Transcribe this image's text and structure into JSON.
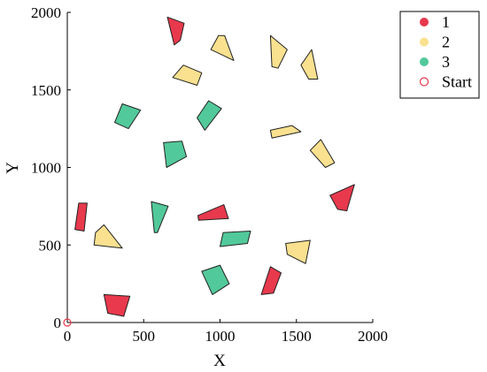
{
  "chart_data": {
    "type": "scatter",
    "xlabel": "X",
    "ylabel": "Y",
    "xlim": [
      0,
      2000
    ],
    "ylim": [
      0,
      2000
    ],
    "xticks": [
      "0",
      "500",
      "1000",
      "1500",
      "2000"
    ],
    "yticks": [
      "0",
      "500",
      "1000",
      "1500",
      "2000"
    ],
    "grid": false,
    "legend_position": "top-right",
    "legend": [
      {
        "label": "1",
        "color": "#e8394d",
        "marker": "filled-circle"
      },
      {
        "label": "2",
        "color": "#fae18f",
        "marker": "filled-circle"
      },
      {
        "label": "3",
        "color": "#52c99a",
        "marker": "filled-circle"
      },
      {
        "label": "Start",
        "color": "#e8394d",
        "marker": "open-circle"
      }
    ],
    "start": {
      "x": 0,
      "y": 0
    },
    "series": [
      {
        "name": "1",
        "color": "#e8394d",
        "polygons": [
          [
            [
              655,
              1970
            ],
            [
              765,
              1930
            ],
            [
              740,
              1820
            ],
            [
              700,
              1790
            ]
          ],
          [
            [
              75,
              770
            ],
            [
              130,
              770
            ],
            [
              110,
              590
            ],
            [
              50,
              600
            ]
          ],
          [
            [
              855,
              690
            ],
            [
              860,
              660
            ],
            [
              1055,
              670
            ],
            [
              1025,
              760
            ]
          ],
          [
            [
              1720,
              820
            ],
            [
              1880,
              890
            ],
            [
              1830,
              720
            ],
            [
              1770,
              730
            ]
          ],
          [
            [
              1330,
              360
            ],
            [
              1400,
              320
            ],
            [
              1350,
              190
            ],
            [
              1270,
              180
            ]
          ],
          [
            [
              240,
              180
            ],
            [
              410,
              170
            ],
            [
              370,
              40
            ],
            [
              265,
              60
            ]
          ]
        ]
      },
      {
        "name": "2",
        "color": "#fae18f",
        "polygons": [
          [
            [
              940,
              1760
            ],
            [
              990,
              1850
            ],
            [
              1030,
              1850
            ],
            [
              1090,
              1690
            ]
          ],
          [
            [
              1330,
              1850
            ],
            [
              1440,
              1760
            ],
            [
              1380,
              1640
            ],
            [
              1340,
              1650
            ]
          ],
          [
            [
              1530,
              1660
            ],
            [
              1600,
              1760
            ],
            [
              1640,
              1570
            ],
            [
              1580,
              1570
            ]
          ],
          [
            [
              690,
              1580
            ],
            [
              760,
              1660
            ],
            [
              880,
              1610
            ],
            [
              850,
              1530
            ]
          ],
          [
            [
              1330,
              1240
            ],
            [
              1470,
              1270
            ],
            [
              1530,
              1230
            ],
            [
              1340,
              1190
            ]
          ],
          [
            [
              1660,
              1180
            ],
            [
              1750,
              1030
            ],
            [
              1690,
              1000
            ],
            [
              1590,
              1110
            ]
          ],
          [
            [
              185,
              580
            ],
            [
              240,
              630
            ],
            [
              360,
              480
            ],
            [
              175,
              500
            ]
          ],
          [
            [
              1430,
              510
            ],
            [
              1590,
              530
            ],
            [
              1560,
              380
            ],
            [
              1440,
              440
            ]
          ]
        ]
      },
      {
        "name": "3",
        "color": "#52c99a",
        "polygons": [
          [
            [
              360,
              1410
            ],
            [
              480,
              1370
            ],
            [
              400,
              1250
            ],
            [
              310,
              1290
            ]
          ],
          [
            [
              925,
              1430
            ],
            [
              1010,
              1380
            ],
            [
              900,
              1240
            ],
            [
              850,
              1320
            ]
          ],
          [
            [
              630,
              1160
            ],
            [
              750,
              1170
            ],
            [
              780,
              1070
            ],
            [
              650,
              1000
            ]
          ],
          [
            [
              550,
              780
            ],
            [
              660,
              750
            ],
            [
              590,
              580
            ],
            [
              570,
              580
            ]
          ],
          [
            [
              1020,
              580
            ],
            [
              1200,
              590
            ],
            [
              1180,
              510
            ],
            [
              1000,
              490
            ]
          ],
          [
            [
              880,
              330
            ],
            [
              1000,
              370
            ],
            [
              1060,
              250
            ],
            [
              950,
              180
            ]
          ]
        ]
      }
    ]
  }
}
